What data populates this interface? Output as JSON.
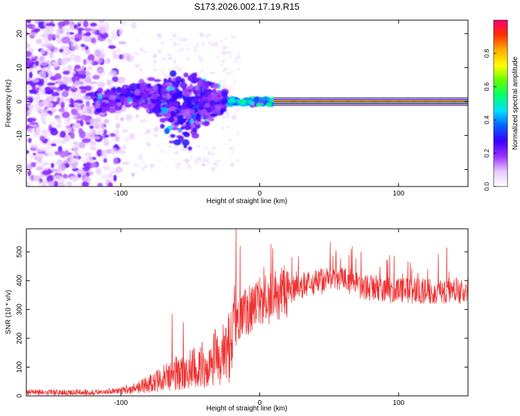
{
  "page_title": "S173.2026.002.17.19.R15",
  "colors": {
    "snr_line": "#ef3030",
    "ridge": "#ff2a1a",
    "cloud": "#8a1cf0"
  },
  "chart_data": [
    {
      "type": "heatmap",
      "title": "S173.2026.002.17.19.R15",
      "xlabel": "Height of straight line (km)",
      "ylabel": "Frequency (Hz)",
      "xlim": [
        -168,
        150
      ],
      "ylim": [
        -25,
        24
      ],
      "xticks": [
        -100,
        0,
        100
      ],
      "xtick_labels": [
        "-100",
        "0",
        "100"
      ],
      "yticks": [
        20,
        10,
        0,
        -10,
        -20
      ],
      "ytick_labels": [
        "20",
        "10",
        "0",
        "-10",
        "-20"
      ],
      "features": [
        {
          "name": "tonal-line",
          "x_range": [
            10,
            150
          ],
          "frequency": 0,
          "amplitude": 0.95
        },
        {
          "name": "transition-segments",
          "x_range": [
            -25,
            10
          ],
          "frequency": 0,
          "amplitude": 0.55
        },
        {
          "name": "cluster-near-field",
          "x_range": [
            -118,
            -25
          ],
          "frequency_range": [
            -14,
            7
          ],
          "amplitude": 0.25
        },
        {
          "name": "diffuse-noise",
          "x_range": [
            -168,
            -85
          ],
          "frequency_range": [
            -25,
            24
          ],
          "amplitude": 0.12
        }
      ],
      "colorbar": {
        "label": "Normalized spectral amplitude",
        "range": [
          0,
          1
        ],
        "ticks": [
          0.0,
          0.2,
          0.4,
          0.6,
          0.8
        ],
        "tick_labels": [
          "0.0",
          "0.2",
          "0.4",
          "0.6",
          "0.8"
        ],
        "colors": [
          "#ffffff",
          "#e8c8ff",
          "#9a30ff",
          "#3a00ff",
          "#0060ff",
          "#00e0ff",
          "#00ff70",
          "#60ff00",
          "#ffff00",
          "#ffb000",
          "#ff3000",
          "#ff0070"
        ]
      }
    },
    {
      "type": "line",
      "xlabel": "Height of straight line (km)",
      "ylabel": "SNR (10 * v/v)",
      "xlim": [
        -168,
        150
      ],
      "ylim": [
        0,
        580
      ],
      "xticks": [
        -100,
        0,
        100
      ],
      "xtick_labels": [
        "-100",
        "0",
        "100"
      ],
      "yticks": [
        0,
        100,
        200,
        300,
        400,
        500
      ],
      "ytick_labels": [
        "0",
        "100",
        "200",
        "300",
        "400",
        "500"
      ],
      "series": [
        {
          "name": "SNR",
          "envelope": {
            "x": [
              -168,
              -120,
              -100,
              -80,
              -60,
              -40,
              -25,
              -20,
              -18,
              -17,
              -15,
              -10,
              -5,
              0,
              10,
              20,
              30,
              40,
              50,
              60,
              70,
              73,
              80,
              90,
              100,
              110,
              120,
              130,
              140,
              150
            ],
            "y": [
              12,
              12,
              18,
              40,
              80,
              110,
              145,
              190,
              330,
              220,
              260,
              290,
              310,
              320,
              340,
              360,
              385,
              395,
              400,
              400,
              395,
              375,
              375,
              370,
              365,
              365,
              365,
              365,
              365,
              365
            ]
          },
          "spikes": [
            {
              "x": -17,
              "y": 580
            },
            {
              "x": -14,
              "y": 520
            },
            {
              "x": -55,
              "y": 255
            },
            {
              "x": -63,
              "y": 285
            },
            {
              "x": -32,
              "y": 230
            },
            {
              "x": 73,
              "y": 500
            },
            {
              "x": 55,
              "y": 505
            }
          ]
        }
      ]
    }
  ]
}
